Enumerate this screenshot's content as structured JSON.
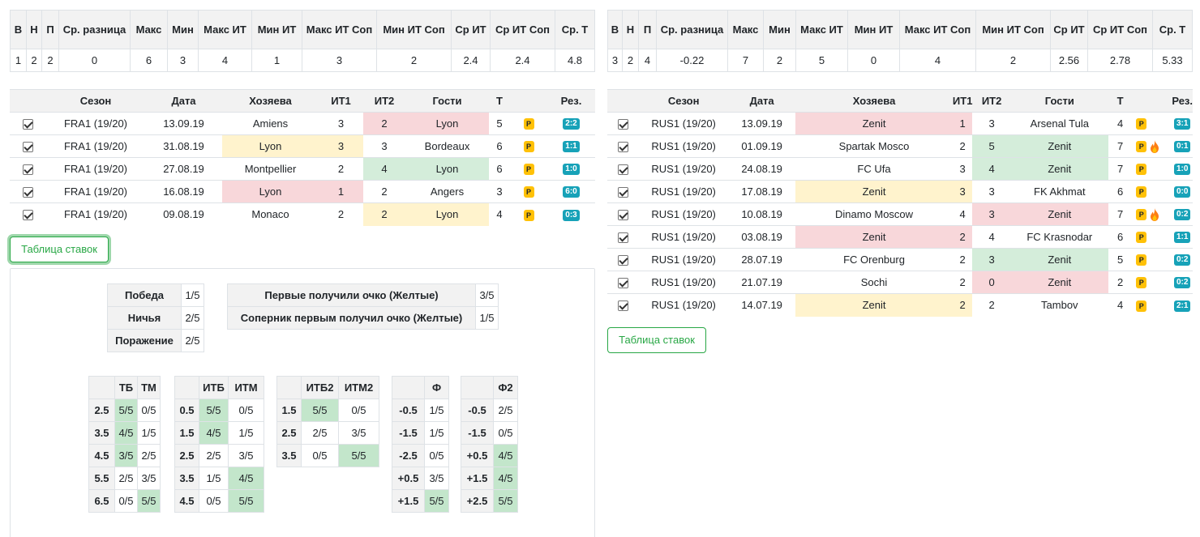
{
  "left": {
    "summary": {
      "headers": [
        "В",
        "Н",
        "П",
        "Ср. разница",
        "Макс",
        "Мин",
        "Макс ИТ",
        "Мин ИТ",
        "Макс ИТ Соп",
        "Мин ИТ Соп",
        "Ср ИТ",
        "Ср ИТ Соп",
        "Ср. Т"
      ],
      "values": [
        "1",
        "2",
        "2",
        "0",
        "6",
        "3",
        "4",
        "1",
        "3",
        "2",
        "2.4",
        "2.4",
        "4.8"
      ]
    },
    "matches": {
      "headers": [
        "",
        "Сезон",
        "Дата",
        "Хозяева",
        "ИТ1",
        "ИТ2",
        "Гости",
        "Т",
        "",
        "Рез."
      ],
      "rows": [
        {
          "season": "FRA1 (19/20)",
          "date": "13.09.19",
          "home": "Amiens",
          "it1": "3",
          "it2": "2",
          "away": "Lyon",
          "t": "5",
          "p": "P",
          "res": "2:2"
        },
        {
          "season": "FRA1 (19/20)",
          "date": "31.08.19",
          "home": "Lyon",
          "it1": "3",
          "it2": "3",
          "away": "Bordeaux",
          "t": "6",
          "p": "P",
          "res": "1:1"
        },
        {
          "season": "FRA1 (19/20)",
          "date": "27.08.19",
          "home": "Montpellier",
          "it1": "2",
          "it2": "4",
          "away": "Lyon",
          "t": "6",
          "p": "P",
          "res": "1:0"
        },
        {
          "season": "FRA1 (19/20)",
          "date": "16.08.19",
          "home": "Lyon",
          "it1": "1",
          "it2": "2",
          "away": "Angers",
          "t": "3",
          "p": "P",
          "res": "6:0"
        },
        {
          "season": "FRA1 (19/20)",
          "date": "09.08.19",
          "home": "Monaco",
          "it1": "2",
          "it2": "2",
          "away": "Lyon",
          "t": "4",
          "p": "P",
          "res": "0:3"
        }
      ]
    },
    "bets_button": "Таблица ставок",
    "outcomes": [
      {
        "label": "Победа",
        "value": "1/5"
      },
      {
        "label": "Ничья",
        "value": "2/5"
      },
      {
        "label": "Поражение",
        "value": "2/5"
      }
    ],
    "first_point": [
      {
        "label": "Первые получили очко (Желтые)",
        "value": "3/5"
      },
      {
        "label": "Соперник первым получил очко (Желтые)",
        "value": "1/5"
      }
    ],
    "tb": {
      "h1": "ТБ",
      "h2": "ТМ",
      "rows": [
        [
          "2.5",
          "5/5",
          "0/5"
        ],
        [
          "3.5",
          "4/5",
          "1/5"
        ],
        [
          "4.5",
          "3/5",
          "2/5"
        ],
        [
          "5.5",
          "2/5",
          "3/5"
        ],
        [
          "6.5",
          "0/5",
          "5/5"
        ]
      ]
    },
    "itb": {
      "h1": "ИТБ",
      "h2": "ИТМ",
      "rows": [
        [
          "0.5",
          "5/5",
          "0/5"
        ],
        [
          "1.5",
          "4/5",
          "1/5"
        ],
        [
          "2.5",
          "2/5",
          "3/5"
        ],
        [
          "3.5",
          "1/5",
          "4/5"
        ],
        [
          "4.5",
          "0/5",
          "5/5"
        ]
      ]
    },
    "itb2": {
      "h1": "ИТБ2",
      "h2": "ИТМ2",
      "rows": [
        [
          "1.5",
          "5/5",
          "0/5"
        ],
        [
          "2.5",
          "2/5",
          "3/5"
        ],
        [
          "3.5",
          "0/5",
          "5/5"
        ]
      ]
    },
    "f": {
      "h1": "Ф",
      "rows": [
        [
          "-0.5",
          "1/5"
        ],
        [
          "-1.5",
          "1/5"
        ],
        [
          "-2.5",
          "0/5"
        ],
        [
          "+0.5",
          "3/5"
        ],
        [
          "+1.5",
          "5/5"
        ]
      ]
    },
    "f2": {
      "h1": "Ф2",
      "rows": [
        [
          "-0.5",
          "2/5"
        ],
        [
          "-1.5",
          "0/5"
        ],
        [
          "+0.5",
          "4/5"
        ],
        [
          "+1.5",
          "4/5"
        ],
        [
          "+2.5",
          "5/5"
        ]
      ]
    }
  },
  "right": {
    "summary": {
      "headers": [
        "В",
        "Н",
        "П",
        "Ср. разница",
        "Макс",
        "Мин",
        "Макс ИТ",
        "Мин ИТ",
        "Макс ИТ Соп",
        "Мин ИТ Соп",
        "Ср ИТ",
        "Ср ИТ Соп",
        "Ср. Т"
      ],
      "values": [
        "3",
        "2",
        "4",
        "-0.22",
        "7",
        "2",
        "5",
        "0",
        "4",
        "2",
        "2.56",
        "2.78",
        "5.33"
      ]
    },
    "matches": {
      "headers": [
        "",
        "Сезон",
        "Дата",
        "Хозяева",
        "ИТ1",
        "ИТ2",
        "Гости",
        "Т",
        "",
        "Рез."
      ],
      "rows": [
        {
          "season": "RUS1 (19/20)",
          "date": "13.09.19",
          "home": "Zenit",
          "it1": "1",
          "it2": "3",
          "away": "Arsenal Tula",
          "t": "4",
          "p": "P",
          "res": "3:1"
        },
        {
          "season": "RUS1 (19/20)",
          "date": "01.09.19",
          "home": "Spartak Mosco",
          "it1": "2",
          "it2": "5",
          "away": "Zenit",
          "t": "7",
          "p": "P",
          "res": "0:1"
        },
        {
          "season": "RUS1 (19/20)",
          "date": "24.08.19",
          "home": "FC Ufa",
          "it1": "3",
          "it2": "4",
          "away": "Zenit",
          "t": "7",
          "p": "P",
          "res": "1:0"
        },
        {
          "season": "RUS1 (19/20)",
          "date": "17.08.19",
          "home": "Zenit",
          "it1": "3",
          "it2": "3",
          "away": "FK Akhmat",
          "t": "6",
          "p": "P",
          "res": "0:0"
        },
        {
          "season": "RUS1 (19/20)",
          "date": "10.08.19",
          "home": "Dinamo Moscow",
          "it1": "4",
          "it2": "3",
          "away": "Zenit",
          "t": "7",
          "p": "P",
          "res": "0:2"
        },
        {
          "season": "RUS1 (19/20)",
          "date": "03.08.19",
          "home": "Zenit",
          "it1": "2",
          "it2": "4",
          "away": "FC Krasnodar",
          "t": "6",
          "p": "P",
          "res": "1:1"
        },
        {
          "season": "RUS1 (19/20)",
          "date": "28.07.19",
          "home": "FC Orenburg",
          "it1": "2",
          "it2": "3",
          "away": "Zenit",
          "t": "5",
          "p": "P",
          "res": "0:2"
        },
        {
          "season": "RUS1 (19/20)",
          "date": "21.07.19",
          "home": "Sochi",
          "it1": "2",
          "it2": "0",
          "away": "Zenit",
          "t": "2",
          "p": "P",
          "res": "0:2"
        },
        {
          "season": "RUS1 (19/20)",
          "date": "14.07.19",
          "home": "Zenit",
          "it1": "2",
          "it2": "2",
          "away": "Tambov",
          "t": "4",
          "p": "P",
          "res": "2:1"
        }
      ]
    },
    "bets_button": "Таблица ставок"
  },
  "colors": {
    "loss": "#f8d7da",
    "draw": "#fff3cd",
    "win": "#d4edda",
    "badge_p": "#ffc107",
    "badge_res": "#17a2b8",
    "button": "#28a745"
  }
}
